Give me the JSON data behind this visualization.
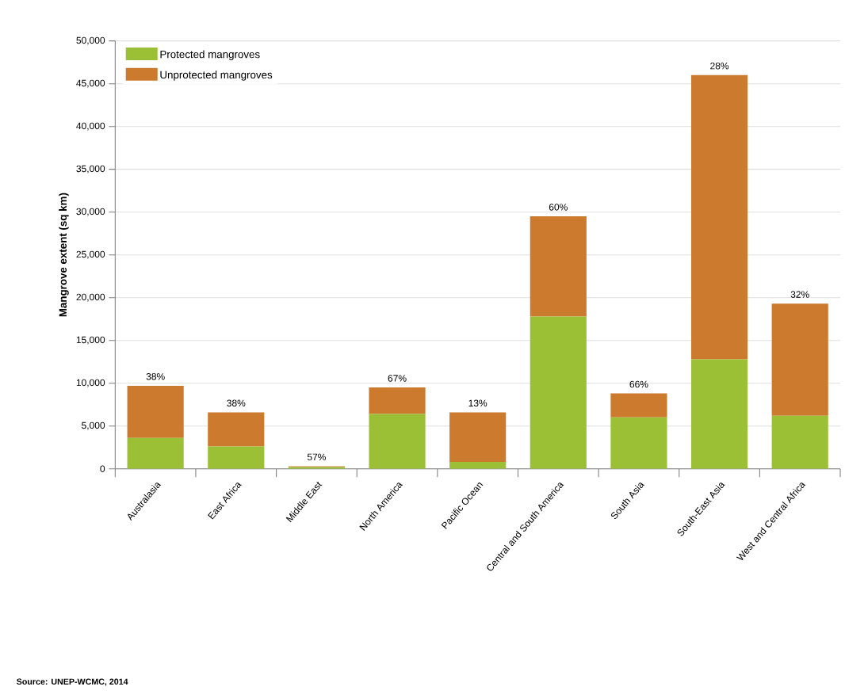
{
  "chart_data": {
    "type": "bar",
    "stacked": true,
    "ylabel": "Mangrove extent (sq km)",
    "categories": [
      "Australasia",
      "East Africa",
      "Middle East",
      "North America",
      "Pacific Ocean",
      "Central and South America",
      "South Asia",
      "South-East Asia",
      "West and Central Africa"
    ],
    "series": [
      {
        "name": "Protected mangroves",
        "color": "#9bbf35",
        "values": [
          3600,
          2600,
          200,
          6400,
          800,
          17800,
          6000,
          12800,
          6200
        ]
      },
      {
        "name": "Unprotected mangroves",
        "color": "#cc7a2e",
        "values": [
          6100,
          4000,
          100,
          3100,
          5800,
          11700,
          2800,
          33200,
          13100
        ]
      }
    ],
    "ylim": [
      0,
      50000
    ],
    "yticks": [
      0,
      {
        "value": 5000,
        "label": "5,000"
      },
      {
        "value": 10000,
        "label": "10,000"
      },
      {
        "value": 15000,
        "label": "15,000"
      },
      {
        "value": 20000,
        "label": "20,000"
      },
      {
        "value": 25000,
        "label": "25,000"
      },
      {
        "value": 30000,
        "label": "30,000"
      },
      {
        "value": 35000,
        "label": "35,000"
      },
      {
        "value": 40000,
        "label": "40,000"
      },
      {
        "value": 45000,
        "label": "45,000"
      },
      {
        "value": 50000,
        "label": "50,000"
      }
    ],
    "grid": "y",
    "legend": "top left",
    "annotations": [
      {
        "text": "38%",
        "x": "Australasia",
        "y": 9700
      },
      {
        "text": "38%",
        "x": "East Africa",
        "y": 6600
      },
      {
        "text": "57%",
        "x": "Middle East",
        "y": 300
      },
      {
        "text": "67%",
        "x": "North America",
        "y": 9500
      },
      {
        "text": "13%",
        "x": "Pacific Ocean",
        "y": 6600
      },
      {
        "text": "60%",
        "x": "Central and South America",
        "y": 29500
      },
      {
        "text": "66%",
        "x": "South Asia",
        "y": 8800
      },
      {
        "text": "28%",
        "x": "South-East Asia",
        "y": 46000
      },
      {
        "text": "32%",
        "x": "West and Central Africa",
        "y": 19300
      },
      "Source: UNEP-WCMC, 2014"
    ]
  }
}
